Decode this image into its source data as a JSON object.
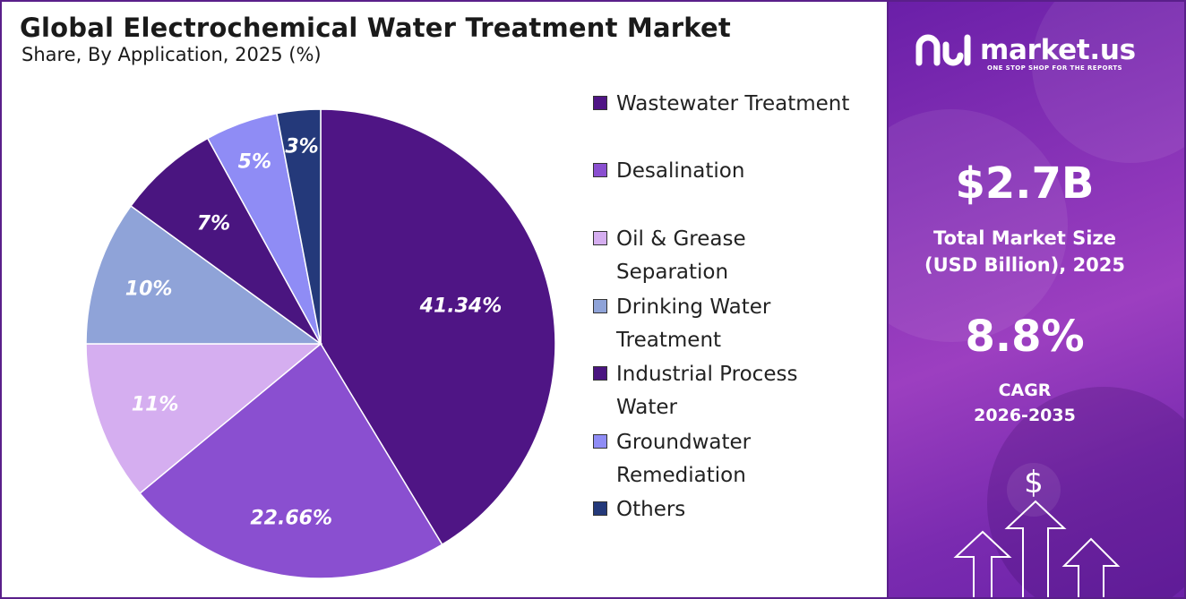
{
  "header": {
    "title": "Global Electrochemical Water Treatment Market",
    "subtitle": "Share, By Application, 2025 (%)"
  },
  "chart_data": {
    "type": "pie",
    "title": "Global Electrochemical Water Treatment Market",
    "subtitle": "Share, By Application, 2025 (%)",
    "legend_position": "right",
    "slices": [
      {
        "label": "Wastewater Treatment",
        "value": 41.34,
        "display": "41.34%",
        "color": "#4f1585"
      },
      {
        "label": "Desalination",
        "value": 22.66,
        "display": "22.66%",
        "color": "#8a4fd0"
      },
      {
        "label": "Oil & Grease Separation",
        "value": 11,
        "display": "11%",
        "color": "#d5aef0"
      },
      {
        "label": "Drinking Water Treatment",
        "value": 10,
        "display": "10%",
        "color": "#8fa3d8"
      },
      {
        "label": "Industrial Process Water",
        "value": 7,
        "display": "7%",
        "color": "#4a1580"
      },
      {
        "label": "Groundwater Remediation",
        "value": 5,
        "display": "5%",
        "color": "#8f8cf5"
      },
      {
        "label": "Others",
        "value": 3,
        "display": "3%",
        "color": "#24397a"
      }
    ]
  },
  "legend": {
    "items": [
      {
        "lines": [
          "Wastewater Treatment"
        ],
        "color": "#4f1585"
      },
      {
        "lines": [
          "Desalination"
        ],
        "color": "#8a4fd0"
      },
      {
        "lines": [
          "Oil & Grease",
          "Separation"
        ],
        "color": "#d5aef0"
      },
      {
        "lines": [
          "Drinking Water",
          "Treatment"
        ],
        "color": "#8fa3d8"
      },
      {
        "lines": [
          "Industrial Process",
          "Water"
        ],
        "color": "#4a1580"
      },
      {
        "lines": [
          "Groundwater",
          "Remediation"
        ],
        "color": "#8f8cf5"
      },
      {
        "lines": [
          "Others"
        ],
        "color": "#24397a"
      }
    ]
  },
  "sidebar": {
    "brand": "market.us",
    "tagline": "ONE STOP SHOP FOR THE REPORTS",
    "market_size_value": "$2.7B",
    "market_size_label_1": "Total Market Size",
    "market_size_label_2": "(USD Billion), 2025",
    "cagr_value": "8.8%",
    "cagr_label_1": "CAGR",
    "cagr_label_2": "2026-2035",
    "dollar_symbol": "$"
  }
}
